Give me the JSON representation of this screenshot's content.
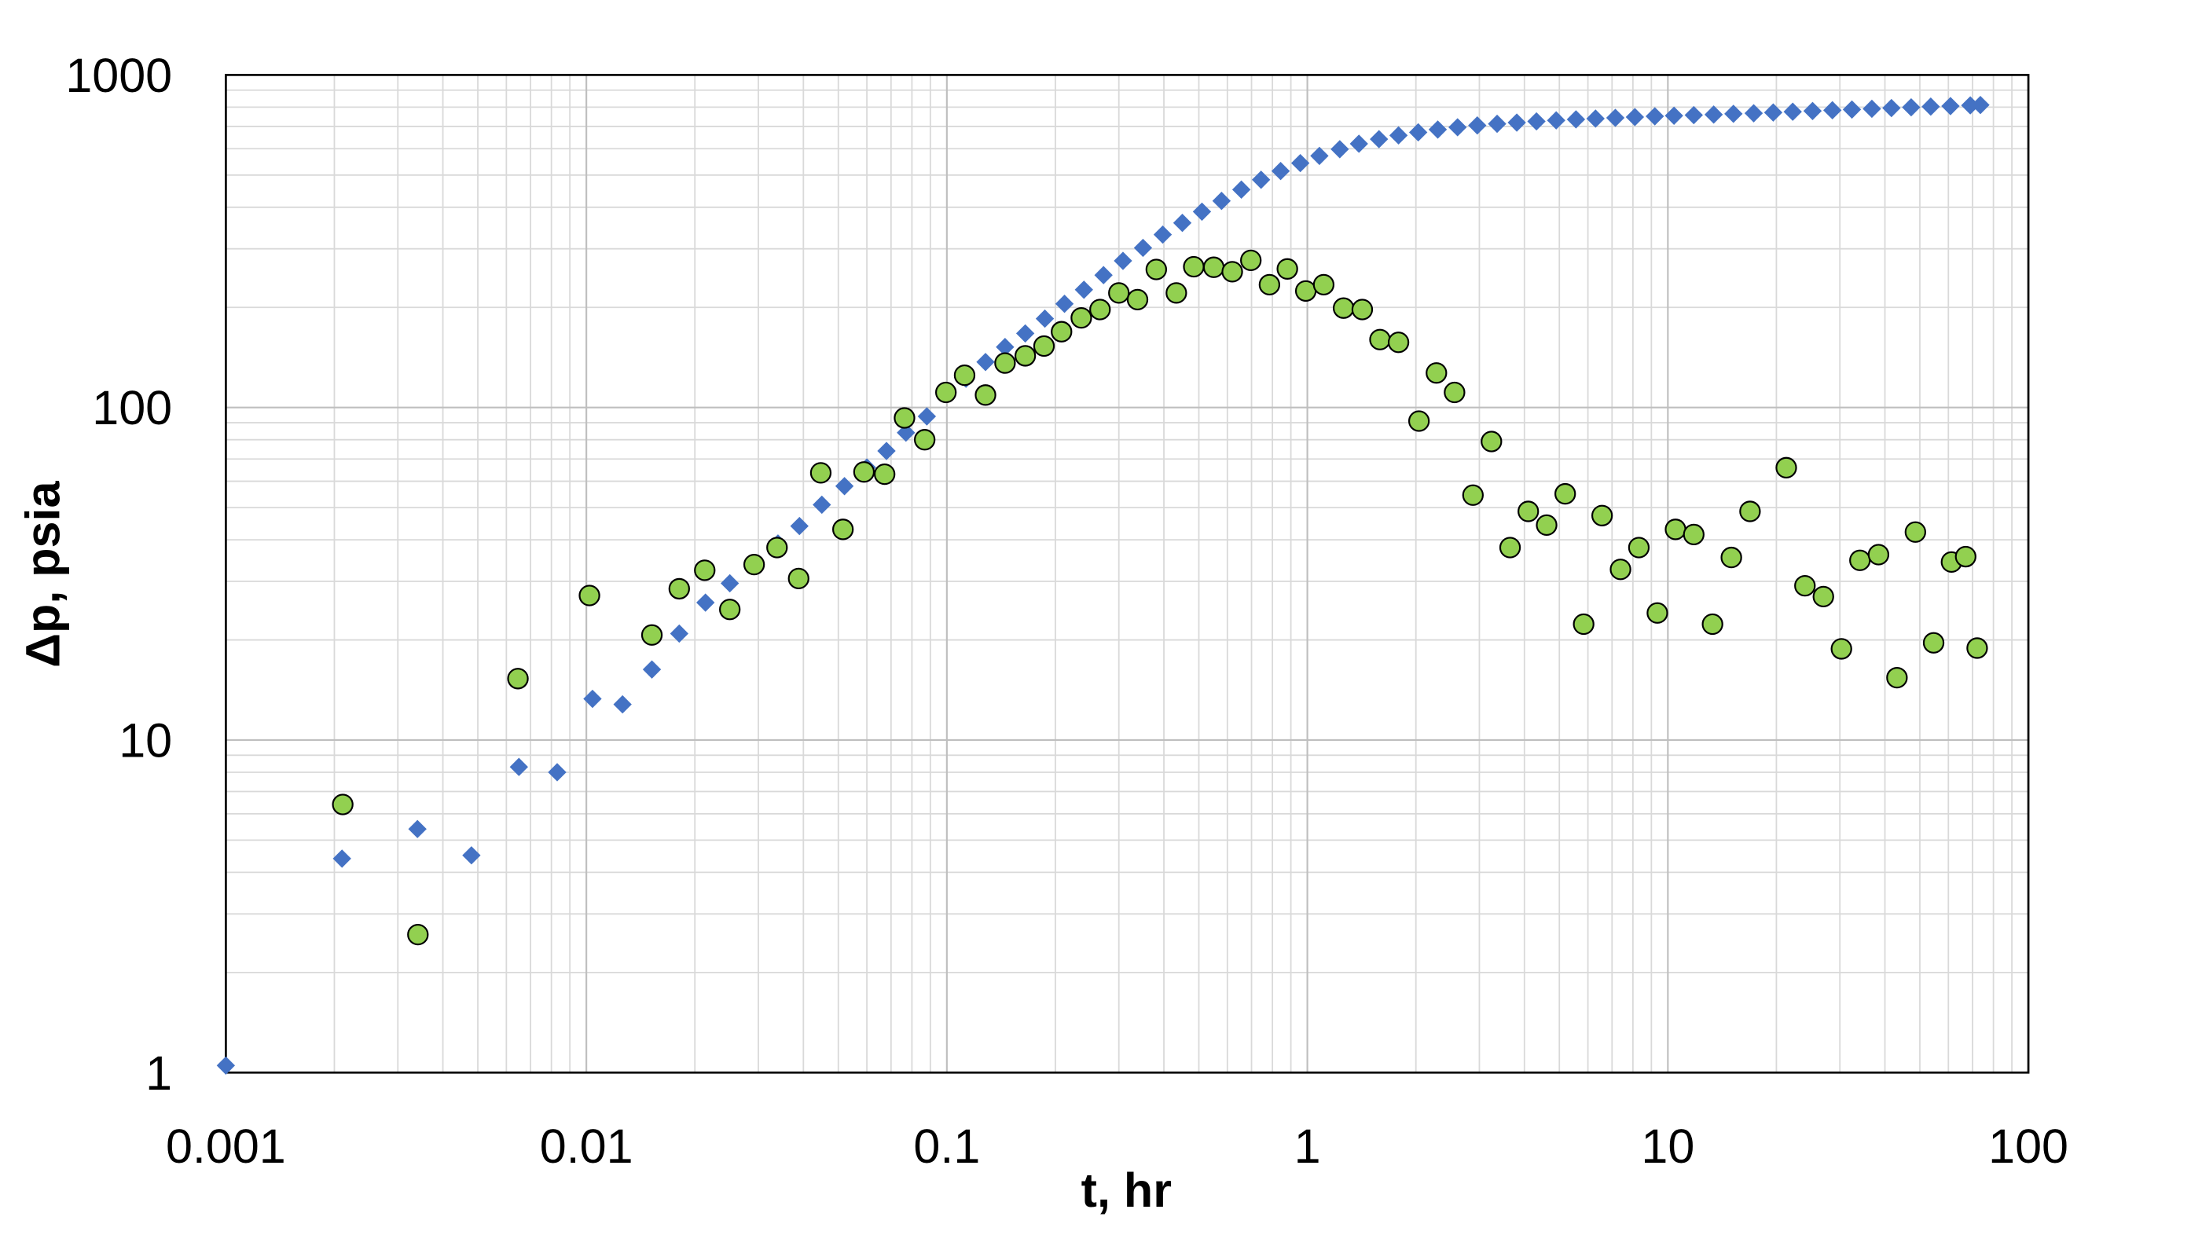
{
  "chart_data": {
    "type": "scatter",
    "x_label": "t, hr",
    "y_label": "Δp, psia",
    "xscale": "log",
    "yscale": "log",
    "xlim": [
      0.001,
      100
    ],
    "ylim": [
      1,
      1000
    ],
    "xticks": [
      0.001,
      0.01,
      0.1,
      1,
      10,
      100
    ],
    "yticks": [
      1,
      10,
      100,
      1000
    ],
    "grid": true,
    "minor_grid": true,
    "series": [
      {
        "color": "#4472c4",
        "marker": "diamond",
        "x": [
          0.001,
          0.0021,
          0.0034,
          0.0048,
          0.0065,
          0.0083,
          0.0104,
          0.0126,
          0.0152,
          0.0181,
          0.0214,
          0.025,
          0.029,
          0.034,
          0.039,
          0.045,
          0.052,
          0.06,
          0.068,
          0.077,
          0.088,
          0.1,
          0.113,
          0.128,
          0.145,
          0.165,
          0.187,
          0.212,
          0.24,
          0.272,
          0.308,
          0.35,
          0.397,
          0.45,
          0.51,
          0.578,
          0.656,
          0.744,
          0.843,
          0.956,
          1.08,
          1.23,
          1.39,
          1.58,
          1.79,
          2.03,
          2.3,
          2.61,
          2.96,
          3.36,
          3.81,
          4.32,
          4.9,
          5.56,
          6.3,
          7.15,
          8.1,
          9.2,
          10.4,
          11.8,
          13.4,
          15.2,
          17.3,
          19.6,
          22.2,
          25.2,
          28.6,
          32.4,
          36.8,
          41.7,
          47.3,
          53.6,
          60.8,
          69,
          73.6
        ],
        "values": [
          1.05,
          4.4,
          5.4,
          4.5,
          8.3,
          8.0,
          13.3,
          12.8,
          16.3,
          20.9,
          25.9,
          29.6,
          34,
          39,
          44,
          51,
          58,
          66,
          74,
          84,
          94,
          110,
          122,
          137,
          152,
          167,
          185,
          205,
          226,
          250,
          276,
          302,
          331,
          359,
          388,
          418,
          452,
          484,
          514,
          543,
          571,
          598,
          621,
          641,
          658,
          672,
          685,
          696,
          705,
          713,
          719,
          725,
          730,
          735,
          739,
          743,
          747,
          751,
          754,
          757,
          760,
          764,
          767,
          771,
          775,
          779,
          783,
          787,
          791,
          795,
          799,
          803,
          806,
          810,
          812
        ]
      },
      {
        "color": "#92d050",
        "marker": "circle",
        "x": [
          0.00211,
          0.00341,
          0.00646,
          0.0102,
          0.0152,
          0.0181,
          0.0213,
          0.025,
          0.0292,
          0.0338,
          0.0388,
          0.0447,
          0.0515,
          0.0589,
          0.0672,
          0.0763,
          0.0868,
          0.0994,
          0.112,
          0.128,
          0.145,
          0.165,
          0.186,
          0.208,
          0.236,
          0.266,
          0.3,
          0.338,
          0.381,
          0.433,
          0.484,
          0.55,
          0.619,
          0.697,
          0.785,
          0.88,
          0.99,
          1.11,
          1.26,
          1.42,
          1.59,
          1.79,
          2.04,
          2.28,
          2.56,
          2.88,
          3.24,
          3.65,
          4.1,
          4.61,
          5.19,
          5.84,
          6.57,
          7.39,
          8.31,
          9.35,
          10.5,
          11.8,
          13.3,
          15.0,
          16.9,
          21.3,
          24.0,
          27.0,
          30.3,
          34.1,
          38.4,
          43.2,
          48.6,
          54.6,
          61.2,
          67,
          72.1
        ],
        "values": [
          6.4,
          2.6,
          15.3,
          27.2,
          20.7,
          28.5,
          32.4,
          24.7,
          33.7,
          37.9,
          30.6,
          63.6,
          43,
          64,
          63,
          93,
          80,
          111,
          125,
          109,
          136,
          143,
          153,
          169,
          186,
          197,
          221,
          211,
          260,
          221,
          265,
          264,
          256,
          277,
          234,
          261,
          224,
          234,
          199,
          197,
          160,
          157,
          91,
          127,
          111,
          54.5,
          79,
          37.9,
          48.7,
          44.3,
          55,
          22.3,
          47.3,
          32.6,
          37.9,
          24.1,
          43,
          41.5,
          22.3,
          35.4,
          48.7,
          65.9,
          29.1,
          27.0,
          18.8,
          34.7,
          36.1,
          15.4,
          42.2,
          19.6,
          34.3,
          35.6,
          18.9
        ]
      }
    ]
  }
}
